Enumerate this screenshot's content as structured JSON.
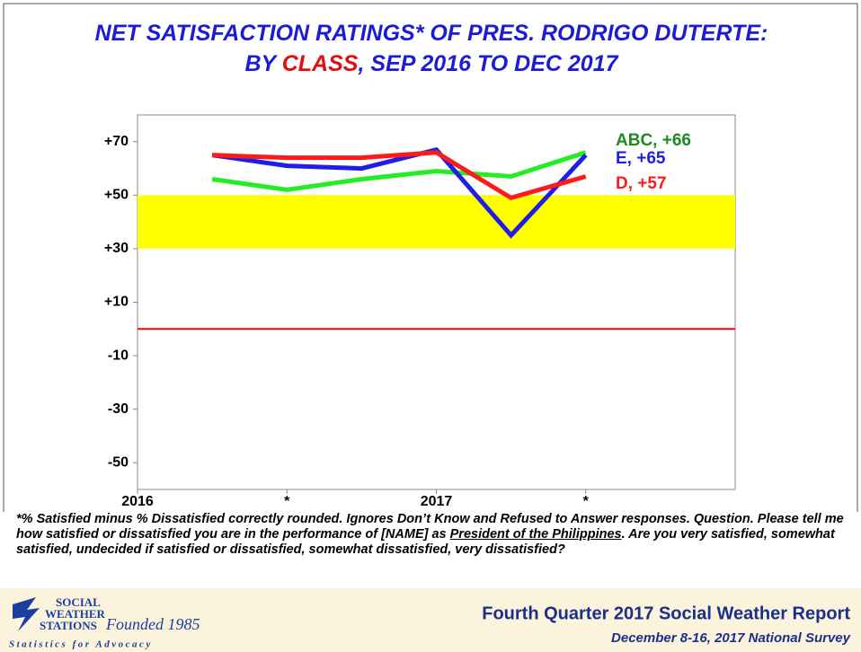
{
  "chart_data": {
    "type": "line",
    "title_lines": [
      [
        "NET SATISFACTION RATINGS* OF PRES. RODRIGO DUTERTE:"
      ],
      [
        "BY ",
        "CLASS",
        ", SEP 2016 TO DEC 2017"
      ]
    ],
    "title_color": "#1c1cd6",
    "title_highlight_color": "#e01010",
    "x": [
      2016.25,
      2016.5,
      2016.75,
      2017,
      2017.25,
      2017.5
    ],
    "xlim": [
      2016,
      2018
    ],
    "xticks": [
      2016,
      {
        "value": 2016.5,
        "label": "*"
      },
      2017,
      {
        "value": 2017.5,
        "label": "*"
      }
    ],
    "ylim": [
      -60,
      80
    ],
    "yticks": [
      {
        "value": 70,
        "label": "+70"
      },
      {
        "value": 50,
        "label": "+50"
      },
      {
        "value": 30,
        "label": "+30"
      },
      {
        "value": 10,
        "label": "+10"
      },
      -10,
      -30,
      -50
    ],
    "band": {
      "from": 30,
      "to": 50,
      "color": "#ffff00"
    },
    "reference_line": {
      "value": 0,
      "color": "#ff0000"
    },
    "series": [
      {
        "label": "ABC, +66",
        "color": "#22ee22",
        "label_color": "#1f8a1f",
        "values": [
          56,
          52,
          56,
          59,
          57,
          66
        ]
      },
      {
        "label": "E, +65",
        "color": "#1e1ee6",
        "label_color": "#1e1ee6",
        "values": [
          65,
          61,
          60,
          67,
          35,
          65
        ]
      },
      {
        "label": "D, +57",
        "color": "#ff1a1a",
        "label_color": "#ff1a1a",
        "values": [
          65,
          64,
          64,
          66,
          49,
          57
        ]
      }
    ],
    "footnote": [
      "*% Satisfied minus % Dissatisfied correctly rounded. Ignores Don’t Know and Refused to Answer responses. Question. Please tell me how satisfied or dissatisfied you are in the performance of [NAME] as ",
      "President of the Philippines",
      ".  Are you very satisfied, somewhat satisfied, undecided if satisfied or dissatisfied, somewhat dissatisfied, very dissatisfied?"
    ]
  },
  "footer": {
    "logo_lines": [
      "SOCIAL",
      "WEATHER",
      "STATIONS"
    ],
    "founded": "Founded 1985",
    "tagline": "Statistics for Advocacy",
    "report": "Fourth Quarter 2017 Social Weather Report",
    "survey": "December 8-16, 2017 National Survey"
  }
}
